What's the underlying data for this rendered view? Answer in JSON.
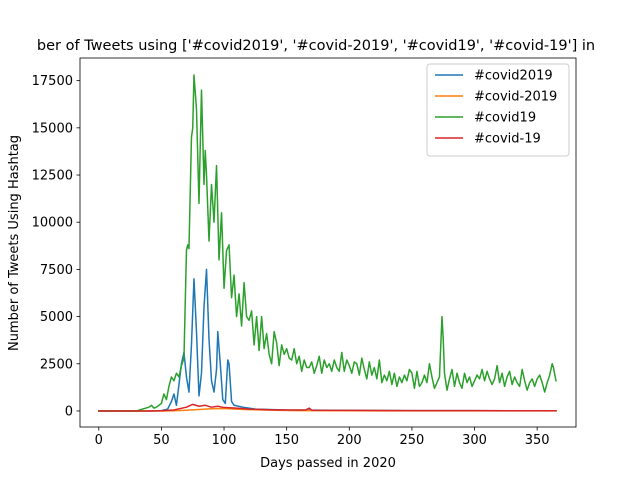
{
  "chart_data": {
    "type": "line",
    "title": "ber of Tweets using ['#covid2019', '#covid-2019', '#covid19', '#covid-19'] in",
    "xlabel": "Days passed in 2020",
    "ylabel": "Number of Tweets Using Hashtag",
    "xlim": [
      -15,
      381
    ],
    "ylim": [
      -850,
      18700
    ],
    "xticks": [
      0,
      50,
      100,
      150,
      200,
      250,
      300,
      350
    ],
    "yticks": [
      0,
      2500,
      5000,
      7500,
      10000,
      12500,
      15000,
      17500
    ],
    "legend_position": "top-right",
    "grid": false,
    "series": [
      {
        "name": "#covid2019",
        "color": "#1f77b4",
        "points": [
          [
            0,
            0
          ],
          [
            20,
            0
          ],
          [
            40,
            0
          ],
          [
            50,
            20
          ],
          [
            55,
            100
          ],
          [
            58,
            500
          ],
          [
            60,
            900
          ],
          [
            62,
            300
          ],
          [
            64,
            1400
          ],
          [
            66,
            2500
          ],
          [
            68,
            3100
          ],
          [
            70,
            1800
          ],
          [
            72,
            1000
          ],
          [
            74,
            3500
          ],
          [
            76,
            7000
          ],
          [
            78,
            4200
          ],
          [
            80,
            800
          ],
          [
            82,
            2000
          ],
          [
            84,
            5500
          ],
          [
            86,
            7500
          ],
          [
            88,
            3800
          ],
          [
            90,
            1600
          ],
          [
            92,
            1000
          ],
          [
            94,
            2200
          ],
          [
            95,
            4200
          ],
          [
            97,
            2500
          ],
          [
            99,
            600
          ],
          [
            101,
            400
          ],
          [
            103,
            2700
          ],
          [
            104,
            2500
          ],
          [
            106,
            500
          ],
          [
            108,
            300
          ],
          [
            115,
            200
          ],
          [
            125,
            100
          ],
          [
            150,
            50
          ],
          [
            200,
            30
          ],
          [
            250,
            20
          ],
          [
            300,
            15
          ],
          [
            365,
            10
          ]
        ]
      },
      {
        "name": "#covid-2019",
        "color": "#ff7f0e",
        "points": [
          [
            0,
            0
          ],
          [
            30,
            0
          ],
          [
            50,
            0
          ],
          [
            60,
            10
          ],
          [
            70,
            40
          ],
          [
            80,
            80
          ],
          [
            90,
            120
          ],
          [
            100,
            130
          ],
          [
            110,
            100
          ],
          [
            120,
            70
          ],
          [
            140,
            40
          ],
          [
            160,
            20
          ],
          [
            200,
            10
          ],
          [
            250,
            5
          ],
          [
            300,
            5
          ],
          [
            365,
            5
          ]
        ]
      },
      {
        "name": "#covid19",
        "color": "#2ca02c",
        "points": [
          [
            0,
            0
          ],
          [
            30,
            0
          ],
          [
            40,
            200
          ],
          [
            42,
            300
          ],
          [
            44,
            150
          ],
          [
            46,
            200
          ],
          [
            48,
            300
          ],
          [
            50,
            400
          ],
          [
            52,
            900
          ],
          [
            54,
            600
          ],
          [
            56,
            1300
          ],
          [
            58,
            1800
          ],
          [
            60,
            1600
          ],
          [
            62,
            2000
          ],
          [
            64,
            1800
          ],
          [
            66,
            2400
          ],
          [
            68,
            2800
          ],
          [
            70,
            8500
          ],
          [
            71,
            8800
          ],
          [
            72,
            8600
          ],
          [
            74,
            14500
          ],
          [
            75,
            15000
          ],
          [
            76,
            17800
          ],
          [
            78,
            16000
          ],
          [
            80,
            11000
          ],
          [
            82,
            17000
          ],
          [
            84,
            12000
          ],
          [
            85,
            13800
          ],
          [
            86,
            12500
          ],
          [
            88,
            9000
          ],
          [
            90,
            12000
          ],
          [
            92,
            10000
          ],
          [
            94,
            13000
          ],
          [
            96,
            8000
          ],
          [
            98,
            10500
          ],
          [
            100,
            6500
          ],
          [
            102,
            8500
          ],
          [
            104,
            8800
          ],
          [
            106,
            6000
          ],
          [
            108,
            7200
          ],
          [
            110,
            5000
          ],
          [
            112,
            6200
          ],
          [
            114,
            4500
          ],
          [
            116,
            6800
          ],
          [
            118,
            5000
          ],
          [
            120,
            4800
          ],
          [
            122,
            5300
          ],
          [
            124,
            3500
          ],
          [
            126,
            5000
          ],
          [
            128,
            3200
          ],
          [
            130,
            5000
          ],
          [
            132,
            3300
          ],
          [
            134,
            4100
          ],
          [
            136,
            3000
          ],
          [
            138,
            2500
          ],
          [
            140,
            4200
          ],
          [
            142,
            3600
          ],
          [
            144,
            2400
          ],
          [
            146,
            3500
          ],
          [
            148,
            3000
          ],
          [
            150,
            3300
          ],
          [
            152,
            2800
          ],
          [
            154,
            2700
          ],
          [
            156,
            3300
          ],
          [
            158,
            2500
          ],
          [
            160,
            2900
          ],
          [
            162,
            2100
          ],
          [
            164,
            2700
          ],
          [
            166,
            2300
          ],
          [
            168,
            2300
          ],
          [
            170,
            2600
          ],
          [
            172,
            2000
          ],
          [
            174,
            2400
          ],
          [
            176,
            2900
          ],
          [
            178,
            2000
          ],
          [
            180,
            2700
          ],
          [
            182,
            2300
          ],
          [
            184,
            2500
          ],
          [
            186,
            2100
          ],
          [
            188,
            2700
          ],
          [
            190,
            2300
          ],
          [
            192,
            2100
          ],
          [
            194,
            3100
          ],
          [
            196,
            2100
          ],
          [
            198,
            2700
          ],
          [
            200,
            2400
          ],
          [
            202,
            2000
          ],
          [
            204,
            2600
          ],
          [
            206,
            2500
          ],
          [
            208,
            1900
          ],
          [
            210,
            2800
          ],
          [
            212,
            2200
          ],
          [
            214,
            1700
          ],
          [
            216,
            2600
          ],
          [
            218,
            1900
          ],
          [
            220,
            2300
          ],
          [
            222,
            1700
          ],
          [
            224,
            2700
          ],
          [
            226,
            1500
          ],
          [
            228,
            1900
          ],
          [
            230,
            1600
          ],
          [
            232,
            2100
          ],
          [
            234,
            1400
          ],
          [
            236,
            2000
          ],
          [
            238,
            1300
          ],
          [
            240,
            1800
          ],
          [
            242,
            1500
          ],
          [
            244,
            1900
          ],
          [
            246,
            1600
          ],
          [
            248,
            2200
          ],
          [
            250,
            2000
          ],
          [
            252,
            1200
          ],
          [
            254,
            2100
          ],
          [
            256,
            1300
          ],
          [
            258,
            1500
          ],
          [
            260,
            1900
          ],
          [
            262,
            1500
          ],
          [
            264,
            2500
          ],
          [
            266,
            1800
          ],
          [
            268,
            1200
          ],
          [
            270,
            1500
          ],
          [
            272,
            1800
          ],
          [
            274,
            5000
          ],
          [
            275,
            3800
          ],
          [
            276,
            2000
          ],
          [
            278,
            1100
          ],
          [
            280,
            1700
          ],
          [
            282,
            2200
          ],
          [
            284,
            1300
          ],
          [
            286,
            2000
          ],
          [
            288,
            1500
          ],
          [
            290,
            1200
          ],
          [
            292,
            2000
          ],
          [
            294,
            1500
          ],
          [
            296,
            1800
          ],
          [
            298,
            1300
          ],
          [
            300,
            1600
          ],
          [
            302,
            1900
          ],
          [
            304,
            1700
          ],
          [
            306,
            2200
          ],
          [
            308,
            1600
          ],
          [
            310,
            2100
          ],
          [
            312,
            1700
          ],
          [
            314,
            1400
          ],
          [
            316,
            1700
          ],
          [
            318,
            2400
          ],
          [
            320,
            1500
          ],
          [
            322,
            2000
          ],
          [
            324,
            1300
          ],
          [
            326,
            1800
          ],
          [
            328,
            2100
          ],
          [
            330,
            1400
          ],
          [
            332,
            1800
          ],
          [
            334,
            1500
          ],
          [
            336,
            1300
          ],
          [
            338,
            2200
          ],
          [
            340,
            1600
          ],
          [
            342,
            1100
          ],
          [
            344,
            1500
          ],
          [
            346,
            1700
          ],
          [
            348,
            1300
          ],
          [
            350,
            1700
          ],
          [
            352,
            1900
          ],
          [
            354,
            1500
          ],
          [
            356,
            1000
          ],
          [
            358,
            1500
          ],
          [
            360,
            1900
          ],
          [
            362,
            2500
          ],
          [
            363,
            2300
          ],
          [
            365,
            1600
          ]
        ]
      },
      {
        "name": "#covid-19",
        "color": "#d62728",
        "points": [
          [
            0,
            0
          ],
          [
            40,
            0
          ],
          [
            50,
            10
          ],
          [
            60,
            50
          ],
          [
            70,
            200
          ],
          [
            75,
            350
          ],
          [
            80,
            250
          ],
          [
            85,
            300
          ],
          [
            90,
            200
          ],
          [
            95,
            250
          ],
          [
            100,
            180
          ],
          [
            110,
            150
          ],
          [
            120,
            100
          ],
          [
            130,
            80
          ],
          [
            140,
            60
          ],
          [
            150,
            50
          ],
          [
            165,
            50
          ],
          [
            168,
            150
          ],
          [
            170,
            40
          ],
          [
            200,
            30
          ],
          [
            250,
            20
          ],
          [
            300,
            15
          ],
          [
            330,
            10
          ],
          [
            365,
            10
          ]
        ]
      }
    ]
  }
}
